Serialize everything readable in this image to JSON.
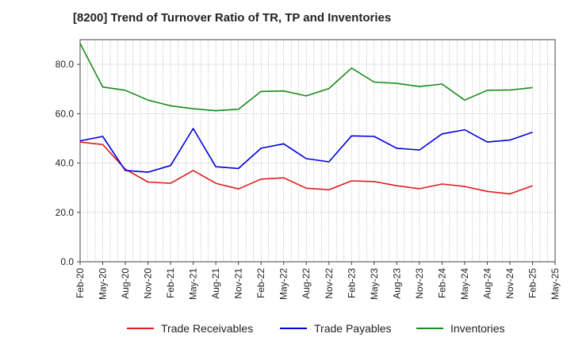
{
  "chart_data": {
    "type": "line",
    "title": "[8200]  Trend of Turnover Ratio of TR, TP and Inventories",
    "xlabel": "",
    "ylabel": "",
    "ylim": [
      0,
      90
    ],
    "yticks": [
      "0.0",
      "20.0",
      "40.0",
      "60.0",
      "80.0"
    ],
    "grid": true,
    "legend_position": "bottom",
    "x_tick_labels": [
      "Feb-20",
      "May-20",
      "Aug-20",
      "Nov-20",
      "Feb-21",
      "May-21",
      "Aug-21",
      "Nov-21",
      "Feb-22",
      "May-22",
      "Aug-22",
      "Nov-22",
      "Feb-23",
      "May-23",
      "Aug-23",
      "Nov-23",
      "Feb-24",
      "May-24",
      "Aug-24",
      "Nov-24",
      "Feb-25",
      "May-25"
    ],
    "x": [
      "Feb-20",
      "May-20",
      "Aug-20",
      "Nov-20",
      "Feb-21",
      "May-21",
      "Aug-21",
      "Nov-21",
      "Feb-22",
      "May-22",
      "Aug-22",
      "Nov-22",
      "Feb-23",
      "May-23",
      "Aug-23",
      "Nov-23",
      "Feb-24",
      "May-24",
      "Aug-24",
      "Nov-24",
      "Feb-25"
    ],
    "series": [
      {
        "name": "Trade Receivables",
        "color": "#e31a1c",
        "values": [
          48.5,
          47.5,
          37.5,
          32.3,
          31.8,
          37.0,
          31.8,
          29.5,
          33.5,
          34.0,
          29.8,
          29.2,
          32.8,
          32.5,
          30.8,
          29.6,
          31.5,
          30.5,
          28.5,
          27.5,
          30.8
        ]
      },
      {
        "name": "Trade Payables",
        "color": "#0000e0",
        "values": [
          49.0,
          50.8,
          37.0,
          36.3,
          39.0,
          54.0,
          38.5,
          37.8,
          46.0,
          47.8,
          41.8,
          40.5,
          51.0,
          50.8,
          46.0,
          45.3,
          51.8,
          53.5,
          48.5,
          49.3,
          52.5
        ]
      },
      {
        "name": "Inventories",
        "color": "#1a8a1a",
        "values": [
          88.5,
          70.8,
          69.5,
          65.5,
          63.2,
          62.0,
          61.2,
          61.8,
          69.0,
          69.2,
          67.2,
          70.2,
          78.5,
          72.8,
          72.3,
          71.0,
          72.0,
          65.5,
          69.5,
          69.6,
          70.6
        ]
      }
    ]
  }
}
